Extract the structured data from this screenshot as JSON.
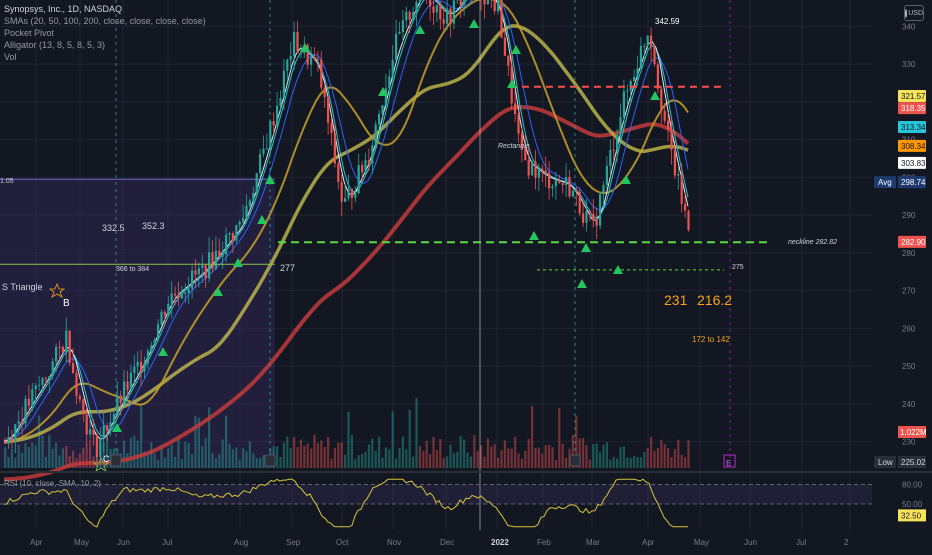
{
  "header": {
    "title": "Synopsys, Inc., 1D, NASDAQ",
    "studies": [
      "SMAs (20, 50, 100, 200, close, close, close, close)",
      "Pocket Pivot",
      "Alligator (13, 8, 5, 8, 5, 3)",
      "Vol"
    ],
    "currency": "USD"
  },
  "colors": {
    "background": "#131722",
    "grid": "#1f2533",
    "sma20": "#e8e8e8",
    "sma50": "#c9a227",
    "sma100": "#b8b24a",
    "sma200": "#c23b3b",
    "alligator_jaw": "#2962ff",
    "alligator_teeth": "#26c6da",
    "alligator_lips": "#f57c00",
    "pocket_pivot": "#22c55e",
    "candle_up": "#26a69a",
    "candle_down": "#ef5350",
    "neckline": "#57d942",
    "resistance": "#ff4d4d",
    "label_orange": "#f7a21b",
    "rsi": "#d4c43c"
  },
  "chart_data": [
    {
      "type": "candlestick",
      "x_ticks": [
        "Apr",
        "May",
        "Jun",
        "Jul",
        "Aug",
        "Sep",
        "Oct",
        "Nov",
        "Dec",
        "2022",
        "Feb",
        "Mar",
        "Apr",
        "May",
        "Jun",
        "Jul",
        "2"
      ],
      "y_ticks": [
        230,
        240,
        250,
        260,
        270,
        280,
        290,
        300,
        310,
        320,
        330,
        340
      ],
      "ylim": [
        223,
        347
      ],
      "price_path": [
        [
          "Apr",
          230
        ],
        [
          "Apr",
          250
        ],
        [
          "Apr",
          258
        ],
        [
          "May",
          239
        ],
        [
          "May",
          228
        ],
        [
          "May",
          236
        ],
        [
          "Jun",
          243
        ],
        [
          "Jun",
          254
        ],
        [
          "Jul",
          268
        ],
        [
          "Jul",
          276
        ],
        [
          "Aug",
          288
        ],
        [
          "Aug",
          302
        ],
        [
          "Aug",
          318
        ],
        [
          "Sep",
          336
        ],
        [
          "Sep",
          329
        ],
        [
          "Oct",
          292
        ],
        [
          "Oct",
          306
        ],
        [
          "Nov",
          334
        ],
        [
          "Nov",
          350
        ],
        [
          "Dec",
          342
        ],
        [
          "Dec",
          352
        ],
        [
          "2022",
          345
        ],
        [
          "2022",
          305
        ],
        [
          "Feb",
          300
        ],
        [
          "Feb",
          298
        ],
        [
          "Mar",
          286
        ],
        [
          "Mar",
          318
        ],
        [
          "Apr",
          340
        ],
        [
          "Apr",
          312
        ],
        [
          "Apr",
          282.9
        ]
      ],
      "price_labels": [
        {
          "text": "321.57",
          "value": 321.57,
          "color": "#f7e35a"
        },
        {
          "text": "318.35",
          "value": 318.35,
          "color": "#ef5350"
        },
        {
          "text": "313.34",
          "value": 313.34,
          "color": "#26c6da"
        },
        {
          "text": "308.34",
          "value": 308.34,
          "color": "#ff9800"
        },
        {
          "text": "303.83",
          "value": 303.83,
          "color": "#ffffff"
        },
        {
          "text": "298.74",
          "value": 298.74,
          "color": "#1e3a6e",
          "tag": "Avg"
        },
        {
          "text": "282.90",
          "value": 282.9,
          "color": "#ef5350"
        }
      ],
      "annotations": [
        {
          "text": "342.59",
          "kind": "high"
        },
        {
          "text": "Rectangle",
          "kind": "pattern"
        },
        {
          "text": "neckline 282.82",
          "kind": "level",
          "value": 282.82
        },
        {
          "text": "275",
          "kind": "level",
          "value": 275
        },
        {
          "text": "231",
          "kind": "target"
        },
        {
          "text": "216.2",
          "kind": "target"
        },
        {
          "text": "172 to 142",
          "kind": "target"
        },
        {
          "text": "332.5",
          "kind": "note"
        },
        {
          "text": "352.3",
          "kind": "note"
        },
        {
          "text": "366 to 384",
          "kind": "note"
        },
        {
          "text": "277",
          "kind": "note"
        },
        {
          "text": "S Triangle",
          "kind": "pattern"
        },
        {
          "text": "B",
          "kind": "point"
        },
        {
          "text": "C",
          "kind": "point"
        },
        {
          "text": "1.05",
          "kind": "note"
        },
        {
          "text": "E",
          "kind": "earnings"
        }
      ],
      "volume_label": "1.022M",
      "low_label": {
        "tag": "Low",
        "value": "225.02"
      }
    },
    {
      "type": "line",
      "title": "RSI (10, close, SMA, 10, 2)",
      "y_ticks": [
        80,
        50
      ],
      "ylim": [
        10,
        90
      ],
      "last_value_label": "32.50"
    }
  ]
}
